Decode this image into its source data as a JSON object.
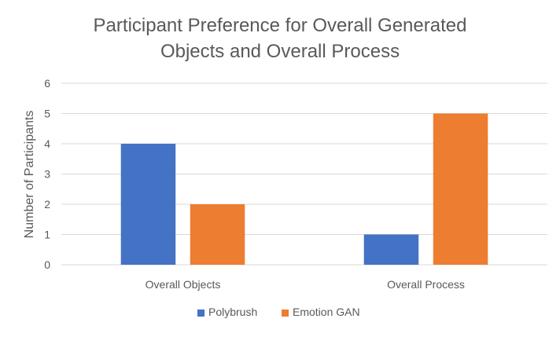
{
  "chart_data": {
    "type": "bar",
    "title_lines": [
      "Participant Preference for Overall Generated",
      "Objects and Overall Process"
    ],
    "xlabel": "",
    "ylabel": "Number of Participants",
    "categories": [
      "Overall Objects",
      "Overall Process"
    ],
    "series": [
      {
        "name": "Polybrush",
        "values": [
          4,
          1
        ],
        "color": "#4472C4"
      },
      {
        "name": "Emotion GAN",
        "values": [
          2,
          5
        ],
        "color": "#ED7D31"
      }
    ],
    "ylim": [
      0,
      6
    ],
    "yticks": [
      "0",
      "1",
      "2",
      "3",
      "4",
      "5",
      "6"
    ],
    "grid": true,
    "legend_position": "bottom"
  }
}
